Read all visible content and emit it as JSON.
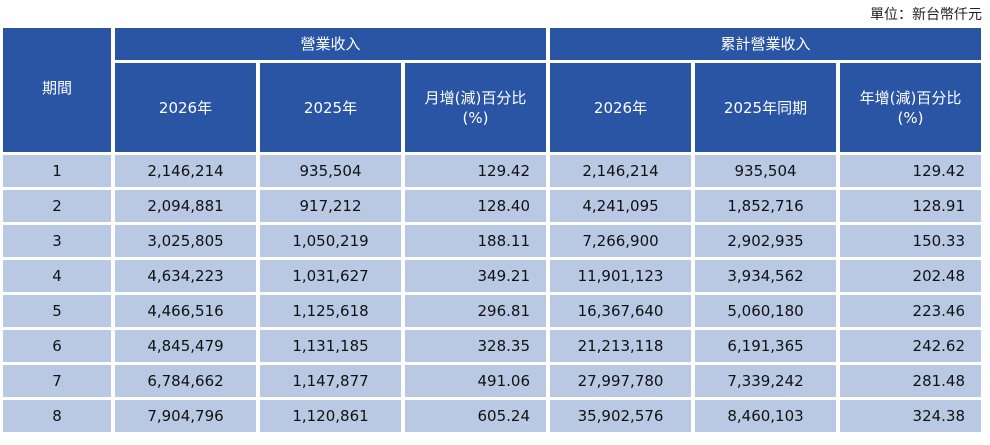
{
  "unit_label": "單位：新台幣仟元",
  "headers": {
    "period": "期間",
    "group_revenue": "營業收入",
    "group_cumulative": "累計營業收入",
    "rev_2026": "2026年",
    "rev_2025": "2025年",
    "rev_mom_line1": "月增(減)百分比",
    "rev_mom_line2": "(%)",
    "cum_2026": "2026年",
    "cum_2025": "2025年同期",
    "cum_yoy_line1": "年增(減)百分比",
    "cum_yoy_line2": "(%)"
  },
  "rows": [
    [
      "1",
      "2,146,214",
      "935,504",
      "129.42",
      "2,146,214",
      "935,504",
      "129.42"
    ],
    [
      "2",
      "2,094,881",
      "917,212",
      "128.40",
      "4,241,095",
      "1,852,716",
      "128.91"
    ],
    [
      "3",
      "3,025,805",
      "1,050,219",
      "188.11",
      "7,266,900",
      "2,902,935",
      "150.33"
    ],
    [
      "4",
      "4,634,223",
      "1,031,627",
      "349.21",
      "11,901,123",
      "3,934,562",
      "202.48"
    ],
    [
      "5",
      "4,466,516",
      "1,125,618",
      "296.81",
      "16,367,640",
      "5,060,180",
      "223.46"
    ],
    [
      "6",
      "4,845,479",
      "1,131,185",
      "328.35",
      "21,213,118",
      "6,191,365",
      "242.62"
    ],
    [
      "7",
      "6,784,662",
      "1,147,877",
      "491.06",
      "27,997,780",
      "7,339,242",
      "281.48"
    ],
    [
      "8",
      "7,904,796",
      "1,120,861",
      "605.24",
      "35,902,576",
      "8,460,103",
      "324.38"
    ]
  ],
  "colors": {
    "header_bg": "#2a55a4",
    "cell_bg": "#b9c9e4"
  }
}
